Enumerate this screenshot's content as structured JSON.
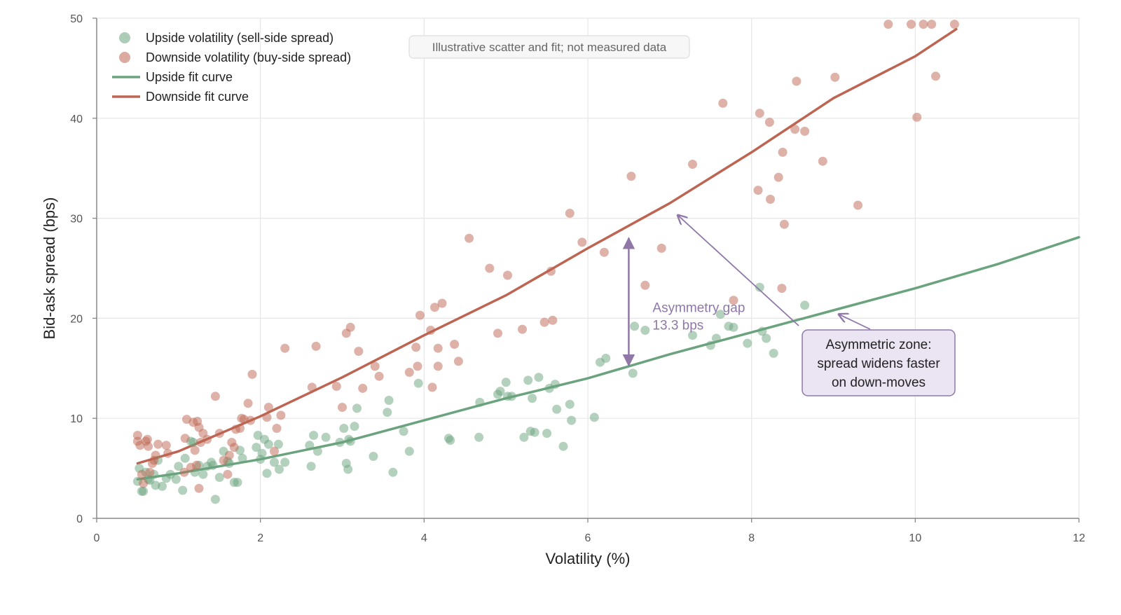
{
  "chart_data": {
    "type": "scatter",
    "xlabel": "Volatility (%)",
    "ylabel": "Bid-ask spread (bps)",
    "xlim": [
      0,
      12
    ],
    "ylim": [
      0,
      50
    ],
    "x_ticks": [
      0,
      2,
      4,
      6,
      8,
      10,
      12
    ],
    "y_ticks": [
      0,
      10,
      20,
      30,
      40,
      50
    ],
    "grid": true,
    "legend_position": "top-left",
    "note": "Illustrative scatter and fit; not measured data",
    "colors": {
      "upside": "#6aa37e",
      "downside": "#bd6552",
      "annotation": "#8f78a8",
      "callout_fill": "#ebe4f3",
      "grid": "#e6e6e6",
      "axis": "#888888"
    },
    "legend": [
      {
        "label": "Upside volatility (sell-side spread)",
        "kind": "marker",
        "series": "upside"
      },
      {
        "label": "Downside volatility (buy-side spread)",
        "kind": "marker",
        "series": "downside"
      },
      {
        "label": "Upside fit curve",
        "kind": "line",
        "series": "upside"
      },
      {
        "label": "Downside fit curve",
        "kind": "line",
        "series": "downside"
      }
    ],
    "series": [
      {
        "name": "Upside volatility (sell-side spread)",
        "key": "upside",
        "type": "scatter",
        "points": [
          [
            0.5,
            3.7
          ],
          [
            0.52,
            5.0
          ],
          [
            0.55,
            2.7
          ],
          [
            0.57,
            2.7
          ],
          [
            0.6,
            4.6
          ],
          [
            0.63,
            3.9
          ],
          [
            0.65,
            3.8
          ],
          [
            0.7,
            4.4
          ],
          [
            0.72,
            3.3
          ],
          [
            0.75,
            5.8
          ],
          [
            0.8,
            3.2
          ],
          [
            0.85,
            4.0
          ],
          [
            0.9,
            4.4
          ],
          [
            0.97,
            3.9
          ],
          [
            1.0,
            5.2
          ],
          [
            1.05,
            2.8
          ],
          [
            1.08,
            6.0
          ],
          [
            1.15,
            7.7
          ],
          [
            1.18,
            7.6
          ],
          [
            1.2,
            4.6
          ],
          [
            1.25,
            5.3
          ],
          [
            1.3,
            4.4
          ],
          [
            1.35,
            5.2
          ],
          [
            1.4,
            5.6
          ],
          [
            1.42,
            5.3
          ],
          [
            1.45,
            1.9
          ],
          [
            1.5,
            4.1
          ],
          [
            1.55,
            6.7
          ],
          [
            1.6,
            5.7
          ],
          [
            1.62,
            5.5
          ],
          [
            1.68,
            3.6
          ],
          [
            1.72,
            3.6
          ],
          [
            1.75,
            6.8
          ],
          [
            1.78,
            6.0
          ],
          [
            1.95,
            7.1
          ],
          [
            1.97,
            8.3
          ],
          [
            2.0,
            5.9
          ],
          [
            2.02,
            6.5
          ],
          [
            2.05,
            7.9
          ],
          [
            2.1,
            7.4
          ],
          [
            2.08,
            4.5
          ],
          [
            2.17,
            5.6
          ],
          [
            2.22,
            7.4
          ],
          [
            2.23,
            4.9
          ],
          [
            2.3,
            5.6
          ],
          [
            2.6,
            7.3
          ],
          [
            2.62,
            5.2
          ],
          [
            2.65,
            8.3
          ],
          [
            2.7,
            6.7
          ],
          [
            2.8,
            8.1
          ],
          [
            2.97,
            7.6
          ],
          [
            3.02,
            9.0
          ],
          [
            3.05,
            5.5
          ],
          [
            3.07,
            4.9
          ],
          [
            3.08,
            7.9
          ],
          [
            3.1,
            7.7
          ],
          [
            3.15,
            9.2
          ],
          [
            3.18,
            11.0
          ],
          [
            3.38,
            6.2
          ],
          [
            3.55,
            10.6
          ],
          [
            3.57,
            11.8
          ],
          [
            3.62,
            4.6
          ],
          [
            3.75,
            8.7
          ],
          [
            3.82,
            6.7
          ],
          [
            3.93,
            13.5
          ],
          [
            4.3,
            8.0
          ],
          [
            4.32,
            7.8
          ],
          [
            4.68,
            11.6
          ],
          [
            4.67,
            8.1
          ],
          [
            4.9,
            12.4
          ],
          [
            4.93,
            12.7
          ],
          [
            5.0,
            13.6
          ],
          [
            5.02,
            12.2
          ],
          [
            5.07,
            12.2
          ],
          [
            5.22,
            8.1
          ],
          [
            5.27,
            13.8
          ],
          [
            5.3,
            8.7
          ],
          [
            5.32,
            12.0
          ],
          [
            5.35,
            8.6
          ],
          [
            5.4,
            14.1
          ],
          [
            5.5,
            8.5
          ],
          [
            5.53,
            13.0
          ],
          [
            5.6,
            13.4
          ],
          [
            5.62,
            10.9
          ],
          [
            5.7,
            7.2
          ],
          [
            5.78,
            11.4
          ],
          [
            5.8,
            9.8
          ],
          [
            6.08,
            10.1
          ],
          [
            6.15,
            15.6
          ],
          [
            6.22,
            16.0
          ],
          [
            6.55,
            14.5
          ],
          [
            6.57,
            19.2
          ],
          [
            6.7,
            18.8
          ],
          [
            7.28,
            18.3
          ],
          [
            7.5,
            17.3
          ],
          [
            7.57,
            18.0
          ],
          [
            7.62,
            20.4
          ],
          [
            7.72,
            19.2
          ],
          [
            7.78,
            19.1
          ],
          [
            7.95,
            17.5
          ],
          [
            8.1,
            23.1
          ],
          [
            8.13,
            18.7
          ],
          [
            8.18,
            18.0
          ],
          [
            8.27,
            16.5
          ],
          [
            8.65,
            21.3
          ]
        ]
      },
      {
        "name": "Downside volatility (buy-side spread)",
        "key": "downside",
        "type": "scatter",
        "points": [
          [
            0.5,
            8.3
          ],
          [
            0.5,
            7.7
          ],
          [
            0.53,
            7.3
          ],
          [
            0.55,
            4.4
          ],
          [
            0.57,
            3.5
          ],
          [
            0.6,
            7.7
          ],
          [
            0.62,
            7.9
          ],
          [
            0.63,
            7.2
          ],
          [
            0.65,
            4.6
          ],
          [
            0.68,
            5.5
          ],
          [
            0.7,
            5.8
          ],
          [
            0.72,
            6.3
          ],
          [
            0.75,
            7.4
          ],
          [
            0.85,
            7.3
          ],
          [
            0.87,
            6.5
          ],
          [
            1.07,
            4.6
          ],
          [
            1.08,
            8.0
          ],
          [
            1.1,
            9.9
          ],
          [
            1.15,
            5.1
          ],
          [
            1.18,
            9.6
          ],
          [
            1.2,
            6.8
          ],
          [
            1.22,
            5.3
          ],
          [
            1.23,
            9.7
          ],
          [
            1.25,
            3.0
          ],
          [
            1.25,
            9.1
          ],
          [
            1.27,
            7.6
          ],
          [
            1.3,
            8.5
          ],
          [
            1.35,
            7.9
          ],
          [
            1.45,
            12.2
          ],
          [
            1.5,
            8.5
          ],
          [
            1.55,
            5.8
          ],
          [
            1.6,
            4.4
          ],
          [
            1.62,
            6.3
          ],
          [
            1.65,
            7.6
          ],
          [
            1.68,
            7.1
          ],
          [
            1.7,
            8.9
          ],
          [
            1.75,
            9.0
          ],
          [
            1.77,
            10.0
          ],
          [
            1.8,
            9.9
          ],
          [
            1.85,
            11.5
          ],
          [
            1.88,
            9.8
          ],
          [
            1.9,
            14.4
          ],
          [
            2.08,
            10.1
          ],
          [
            2.1,
            11.1
          ],
          [
            2.17,
            6.7
          ],
          [
            2.2,
            9.0
          ],
          [
            2.25,
            10.3
          ],
          [
            2.3,
            17.0
          ],
          [
            2.63,
            13.1
          ],
          [
            2.68,
            17.2
          ],
          [
            2.93,
            13.2
          ],
          [
            3.0,
            11.1
          ],
          [
            3.05,
            18.5
          ],
          [
            3.1,
            19.1
          ],
          [
            3.2,
            16.7
          ],
          [
            3.25,
            13.0
          ],
          [
            3.4,
            15.2
          ],
          [
            3.45,
            14.2
          ],
          [
            3.82,
            14.6
          ],
          [
            3.9,
            17.1
          ],
          [
            3.92,
            15.2
          ],
          [
            3.95,
            20.3
          ],
          [
            4.08,
            18.8
          ],
          [
            4.1,
            13.1
          ],
          [
            4.13,
            21.1
          ],
          [
            4.17,
            17.0
          ],
          [
            4.17,
            15.2
          ],
          [
            4.22,
            21.5
          ],
          [
            4.37,
            17.4
          ],
          [
            4.42,
            15.7
          ],
          [
            4.55,
            28.0
          ],
          [
            4.8,
            25.0
          ],
          [
            4.9,
            18.5
          ],
          [
            5.02,
            24.3
          ],
          [
            5.2,
            18.9
          ],
          [
            5.47,
            19.6
          ],
          [
            5.55,
            24.7
          ],
          [
            5.57,
            19.8
          ],
          [
            5.78,
            30.5
          ],
          [
            5.93,
            27.6
          ],
          [
            6.2,
            26.6
          ],
          [
            6.53,
            34.2
          ],
          [
            6.7,
            23.3
          ],
          [
            6.9,
            27.0
          ],
          [
            7.28,
            35.4
          ],
          [
            7.65,
            41.5
          ],
          [
            7.78,
            21.8
          ],
          [
            8.08,
            32.8
          ],
          [
            8.1,
            40.5
          ],
          [
            8.22,
            39.6
          ],
          [
            8.23,
            31.9
          ],
          [
            8.33,
            34.1
          ],
          [
            8.37,
            23.0
          ],
          [
            8.38,
            36.6
          ],
          [
            8.4,
            29.4
          ],
          [
            8.53,
            38.9
          ],
          [
            8.55,
            43.7
          ],
          [
            8.65,
            38.7
          ],
          [
            8.87,
            35.7
          ],
          [
            9.02,
            44.1
          ],
          [
            9.3,
            31.3
          ],
          [
            9.67,
            49.4
          ],
          [
            9.95,
            49.4
          ],
          [
            10.02,
            40.1
          ],
          [
            10.1,
            49.4
          ],
          [
            10.2,
            49.4
          ],
          [
            10.25,
            44.2
          ],
          [
            10.48,
            49.4
          ]
        ]
      },
      {
        "name": "Upside fit curve",
        "key": "upside",
        "type": "line",
        "points": [
          [
            0.5,
            3.9
          ],
          [
            1,
            4.5
          ],
          [
            2,
            5.9
          ],
          [
            3,
            7.6
          ],
          [
            4,
            9.8
          ],
          [
            5,
            12.0
          ],
          [
            6,
            14.0
          ],
          [
            7,
            16.4
          ],
          [
            8,
            18.6
          ],
          [
            9,
            20.8
          ],
          [
            10,
            23.0
          ],
          [
            11,
            25.4
          ],
          [
            12,
            28.1
          ]
        ]
      },
      {
        "name": "Downside fit curve",
        "key": "downside",
        "type": "line",
        "points": [
          [
            0.5,
            5.5
          ],
          [
            1,
            6.7
          ],
          [
            2,
            10.2
          ],
          [
            3,
            14.1
          ],
          [
            4,
            18.3
          ],
          [
            5,
            22.3
          ],
          [
            6,
            27.0
          ],
          [
            7,
            31.5
          ],
          [
            8,
            36.6
          ],
          [
            9,
            42.0
          ],
          [
            10,
            46.2
          ],
          [
            10.5,
            48.9
          ]
        ]
      }
    ],
    "annotations": {
      "gap": {
        "label_line1": "Asymmetry gap",
        "label_line2": "13.3 bps",
        "x": 6.5,
        "y_low": 15.0,
        "y_high": 28.3
      },
      "callout": {
        "lines": [
          "Asymmetric zone:",
          "spread widens faster",
          "on down-moves"
        ],
        "arrow_targets": [
          [
            7.1,
            30.3
          ],
          [
            9.05,
            20.4
          ]
        ]
      }
    }
  }
}
